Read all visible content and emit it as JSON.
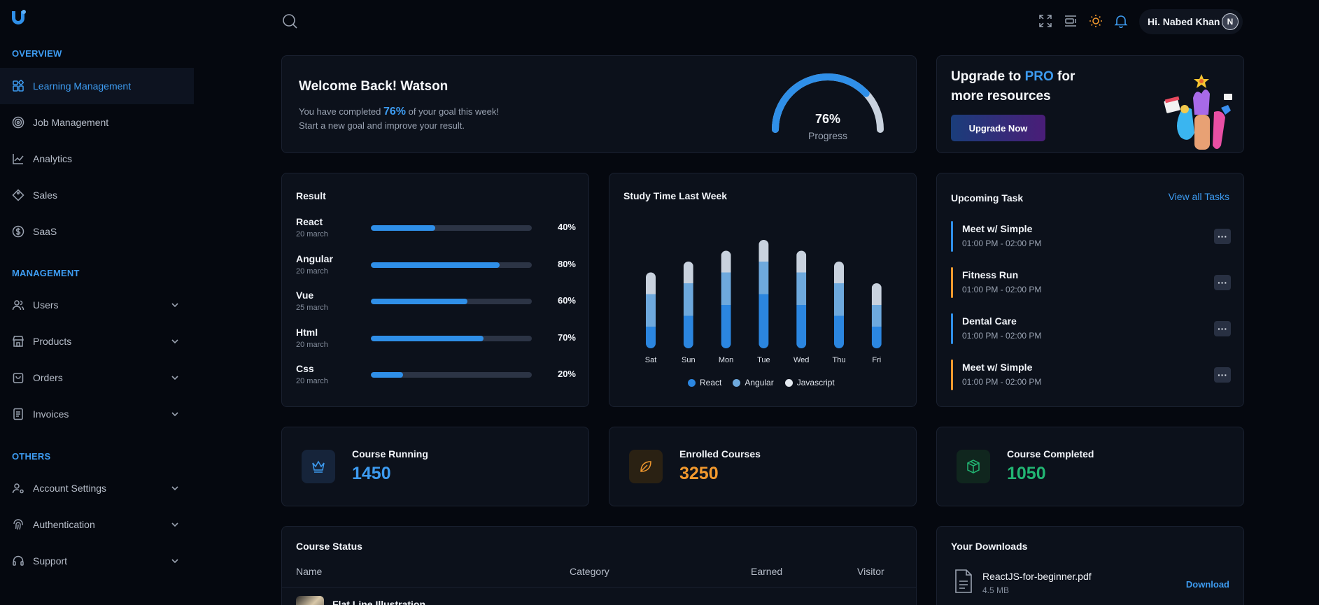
{
  "colors": {
    "accent": "#3d9bf0",
    "orange": "#f2992e",
    "green": "#22b573",
    "bg": "#05080f",
    "card": "#0c111b"
  },
  "sidebar": {
    "logo": "logo-icon",
    "sections": [
      {
        "title": "OVERVIEW"
      },
      {
        "title": "MANAGEMENT"
      },
      {
        "title": "OTHERS"
      }
    ],
    "items": [
      {
        "label": "Learning Management",
        "icon": "dashboard-icon",
        "active": true
      },
      {
        "label": "Job Management",
        "icon": "target-icon"
      },
      {
        "label": "Analytics",
        "icon": "analytics-icon"
      },
      {
        "label": "Sales",
        "icon": "tag-icon"
      },
      {
        "label": "SaaS",
        "icon": "dollar-icon"
      },
      {
        "label": "Users",
        "icon": "users-icon",
        "expandable": true
      },
      {
        "label": "Products",
        "icon": "store-icon",
        "expandable": true
      },
      {
        "label": "Orders",
        "icon": "bag-icon",
        "expandable": true
      },
      {
        "label": "Invoices",
        "icon": "invoice-icon",
        "expandable": true
      },
      {
        "label": "Account Settings",
        "icon": "user-settings-icon",
        "expandable": true
      },
      {
        "label": "Authentication",
        "icon": "fingerprint-icon",
        "expandable": true
      },
      {
        "label": "Support",
        "icon": "headset-icon",
        "expandable": true
      }
    ]
  },
  "header": {
    "user_greeting": "Hi. Nabed Khan",
    "avatar_initial": "N"
  },
  "welcome": {
    "title": "Welcome Back! Watson",
    "line1_pre": "You have completed",
    "line1_pct": "76%",
    "line1_post": "of your goal this week!",
    "line2": "Start a new goal and improve your result.",
    "gauge_value": "76%",
    "gauge_fraction": 0.76,
    "gauge_label": "Progress"
  },
  "upgrade": {
    "line1_pre": "Upgrade to",
    "line1_pro": "PRO",
    "line1_post": "for",
    "line2": "more resources",
    "button": "Upgrade Now"
  },
  "result": {
    "title": "Result",
    "rows": [
      {
        "name": "React",
        "date": "20 march",
        "pct": "40%",
        "value": 40
      },
      {
        "name": "Angular",
        "date": "20 march",
        "pct": "80%",
        "value": 80
      },
      {
        "name": "Vue",
        "date": "25 march",
        "pct": "60%",
        "value": 60
      },
      {
        "name": "Html",
        "date": "20 march",
        "pct": "70%",
        "value": 70
      },
      {
        "name": "Css",
        "date": "20 march",
        "pct": "20%",
        "value": 20
      }
    ]
  },
  "chart_data": {
    "type": "bar",
    "stacked": true,
    "title": "Study Time Last Week",
    "categories": [
      "Sat",
      "Sun",
      "Mon",
      "Tue",
      "Wed",
      "Thu",
      "Fri"
    ],
    "series": [
      {
        "name": "React",
        "color": "#2b86e0",
        "values": [
          20,
          30,
          40,
          50,
          40,
          30,
          20
        ]
      },
      {
        "name": "Angular",
        "color": "#6ea9dd",
        "values": [
          30,
          30,
          30,
          30,
          30,
          30,
          20
        ]
      },
      {
        "name": "Javascript",
        "color": "#c9d2de",
        "values": [
          20,
          20,
          20,
          20,
          20,
          20,
          20
        ]
      }
    ],
    "legend_position": "bottom"
  },
  "tasks": {
    "title": "Upcoming Task",
    "view_all": "View all Tasks",
    "items": [
      {
        "name": "Meet w/ Simple",
        "time": "01:00 PM - 02:00 PM",
        "color": "#2f8fe8"
      },
      {
        "name": "Fitness Run",
        "time": "01:00 PM - 02:00 PM",
        "color": "#f2992e"
      },
      {
        "name": "Dental Care",
        "time": "01:00 PM - 02:00 PM",
        "color": "#2f8fe8"
      },
      {
        "name": "Meet w/ Simple",
        "time": "01:00 PM - 02:00 PM",
        "color": "#f2992e"
      }
    ],
    "more_label": "···"
  },
  "stats": [
    {
      "label": "Course Running",
      "value": "1450",
      "color": "#3d9bf0",
      "icon": "crown-icon"
    },
    {
      "label": "Enrolled Courses",
      "value": "3250",
      "color": "#f2992e",
      "icon": "leaf-icon"
    },
    {
      "label": "Course Completed",
      "value": "1050",
      "color": "#22b573",
      "icon": "package-icon"
    }
  ],
  "course_status": {
    "title": "Course Status",
    "columns": [
      "Name",
      "Category",
      "Earned",
      "Visitor"
    ],
    "rows": [
      {
        "name": "Flat Line Illustration"
      }
    ]
  },
  "downloads": {
    "title": "Your Downloads",
    "items": [
      {
        "name": "ReactJS-for-beginner.pdf",
        "size": "4.5 MB",
        "action": "Download"
      }
    ]
  }
}
